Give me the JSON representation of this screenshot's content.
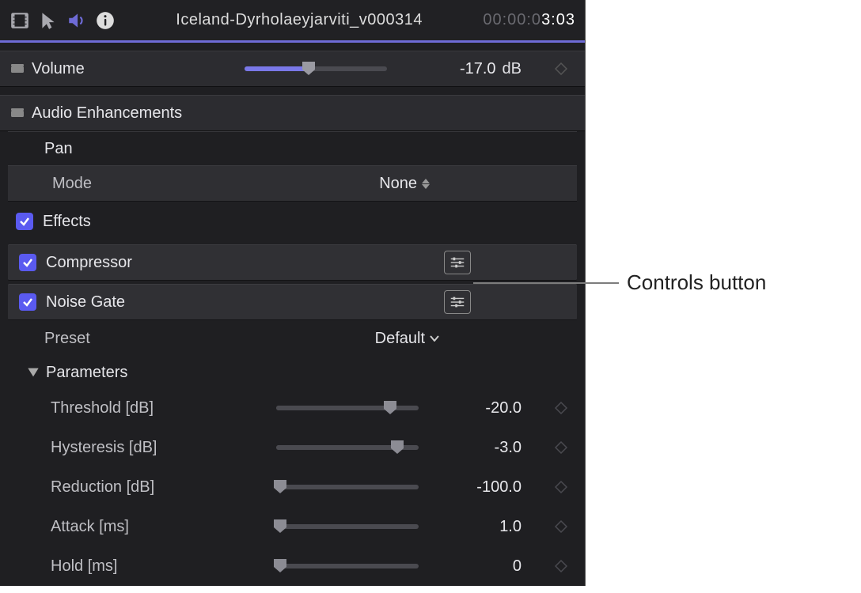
{
  "header": {
    "clip_name": "Iceland-Dyrholaeyjarviti_v000314",
    "timecode_dim": "00:00:0",
    "timecode": "3:03"
  },
  "volume": {
    "label": "Volume",
    "value": "-17.0",
    "unit": "dB",
    "slider_pct": 45,
    "fill_color": "#7a78e8"
  },
  "audio_enh": {
    "label": "Audio Enhancements"
  },
  "pan": {
    "label": "Pan"
  },
  "mode": {
    "label": "Mode",
    "value": "None"
  },
  "effects": {
    "label": "Effects"
  },
  "compressor": {
    "label": "Compressor"
  },
  "noise_gate": {
    "label": "Noise Gate"
  },
  "preset": {
    "label": "Preset",
    "value": "Default"
  },
  "parameters_label": "Parameters",
  "params": [
    {
      "label": "Threshold [dB]",
      "value": "-20.0",
      "slider_pct": 80
    },
    {
      "label": "Hysteresis [dB]",
      "value": "-3.0",
      "slider_pct": 85
    },
    {
      "label": "Reduction [dB]",
      "value": "-100.0",
      "slider_pct": 3
    },
    {
      "label": "Attack [ms]",
      "value": "1.0",
      "slider_pct": 3
    },
    {
      "label": "Hold [ms]",
      "value": "0",
      "slider_pct": 3
    }
  ],
  "callout": {
    "text": "Controls button"
  },
  "colors": {
    "accent": "#6e6bd6",
    "checkbox": "#5a5af0",
    "panel_bg": "#1f1f22",
    "row_bg": "#2c2c30",
    "text": "#e6e6ea"
  }
}
